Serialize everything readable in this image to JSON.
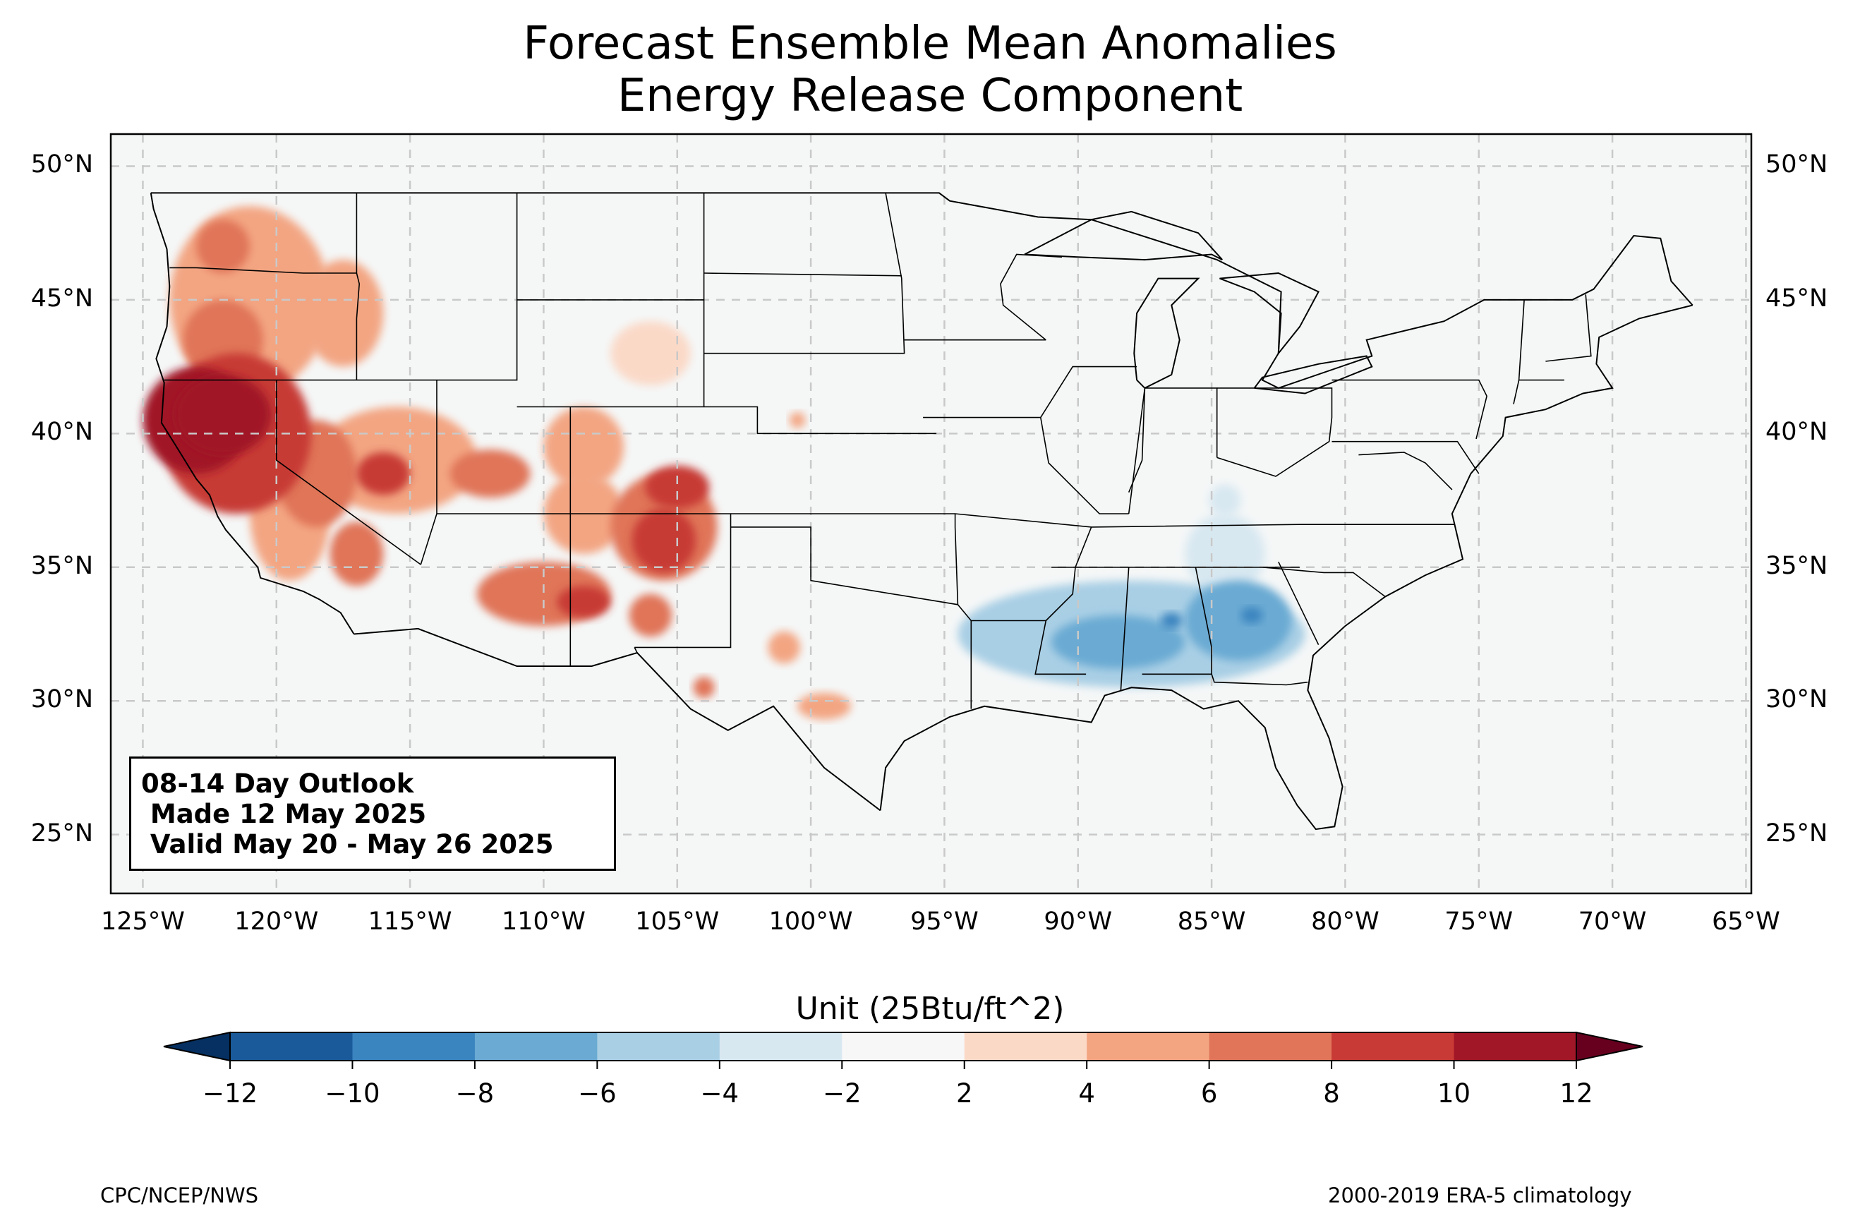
{
  "title": {
    "line1": "Forecast Ensemble Mean Anomalies",
    "line2": "Energy Release Component"
  },
  "map": {
    "lon_min": -126.2,
    "lon_max": -64.8,
    "lat_min": 22.8,
    "lat_max": 51.2,
    "background_color": "#f5f7f7",
    "gridline_color": "#c9c9c9",
    "lat_ticks": [
      {
        "value": 50,
        "label": "50°N"
      },
      {
        "value": 45,
        "label": "45°N"
      },
      {
        "value": 40,
        "label": "40°N"
      },
      {
        "value": 35,
        "label": "35°N"
      },
      {
        "value": 30,
        "label": "30°N"
      },
      {
        "value": 25,
        "label": "25°N"
      }
    ],
    "lon_ticks": [
      {
        "value": -125,
        "label": "125°W"
      },
      {
        "value": -120,
        "label": "120°W"
      },
      {
        "value": -115,
        "label": "115°W"
      },
      {
        "value": -110,
        "label": "110°W"
      },
      {
        "value": -105,
        "label": "105°W"
      },
      {
        "value": -100,
        "label": "100°W"
      },
      {
        "value": -95,
        "label": "95°W"
      },
      {
        "value": -90,
        "label": "90°W"
      },
      {
        "value": -85,
        "label": "85°W"
      },
      {
        "value": -80,
        "label": "80°W"
      },
      {
        "value": -75,
        "label": "75°W"
      },
      {
        "value": -70,
        "label": "70°W"
      },
      {
        "value": -65,
        "label": "65°W"
      }
    ]
  },
  "outlook": {
    "line1": "08-14 Day Outlook",
    "line2": " Made 12 May 2025",
    "line3": " Valid May 20 - May 26 2025"
  },
  "anomalies": [
    {
      "name": "northern-california-core",
      "lon": -122.0,
      "lat": 40.7,
      "value": 12,
      "rx": 1.8,
      "ry": 1.5
    },
    {
      "name": "northern-california-west",
      "lon": -123.0,
      "lat": 40.5,
      "value": 10,
      "rx": 2.0,
      "ry": 2.0
    },
    {
      "name": "northern-california-broad",
      "lon": -121.5,
      "lat": 40.0,
      "value": 8,
      "rx": 2.8,
      "ry": 3.0
    },
    {
      "name": "oregon-washington-band",
      "lon": -121.0,
      "lat": 45.0,
      "value": 4,
      "rx": 3.0,
      "ry": 3.5
    },
    {
      "name": "oregon-core",
      "lon": -122.0,
      "lat": 43.5,
      "value": 6,
      "rx": 1.5,
      "ry": 1.5
    },
    {
      "name": "washington-patch",
      "lon": -122.0,
      "lat": 47.0,
      "value": 6,
      "rx": 1.0,
      "ry": 1.0
    },
    {
      "name": "idaho-patch",
      "lon": -117.5,
      "lat": 44.5,
      "value": 4,
      "rx": 1.5,
      "ry": 2.0
    },
    {
      "name": "nevada-west",
      "lon": -118.5,
      "lat": 38.5,
      "value": 6,
      "rx": 1.5,
      "ry": 2.0
    },
    {
      "name": "central-nevada",
      "lon": -116.0,
      "lat": 38.5,
      "value": 8,
      "rx": 1.0,
      "ry": 0.8
    },
    {
      "name": "great-basin-band",
      "lon": -115.5,
      "lat": 39.0,
      "value": 4,
      "rx": 3.0,
      "ry": 2.0
    },
    {
      "name": "utah-patch",
      "lon": -112.0,
      "lat": 38.5,
      "value": 6,
      "rx": 1.5,
      "ry": 0.9
    },
    {
      "name": "southern-california",
      "lon": -117.0,
      "lat": 35.5,
      "value": 6,
      "rx": 1.0,
      "ry": 1.2
    },
    {
      "name": "sierra-band",
      "lon": -119.5,
      "lat": 37.0,
      "value": 4,
      "rx": 1.5,
      "ry": 2.5
    },
    {
      "name": "colorado-west",
      "lon": -108.5,
      "lat": 39.5,
      "value": 4,
      "rx": 1.5,
      "ry": 1.5
    },
    {
      "name": "colorado-south",
      "lon": -105.0,
      "lat": 38.0,
      "value": 8,
      "rx": 1.2,
      "ry": 0.8
    },
    {
      "name": "new-mexico-north",
      "lon": -105.5,
      "lat": 36.0,
      "value": 8,
      "rx": 1.2,
      "ry": 1.2
    },
    {
      "name": "new-mexico-band",
      "lon": -105.5,
      "lat": 36.5,
      "value": 6,
      "rx": 2.0,
      "ry": 2.0
    },
    {
      "name": "arizona-central",
      "lon": -110.0,
      "lat": 34.0,
      "value": 6,
      "rx": 2.5,
      "ry": 1.2
    },
    {
      "name": "arizona-east",
      "lon": -108.5,
      "lat": 33.7,
      "value": 8,
      "rx": 1.0,
      "ry": 0.6
    },
    {
      "name": "new-mexico-south",
      "lon": -106.0,
      "lat": 33.2,
      "value": 6,
      "rx": 0.8,
      "ry": 0.8
    },
    {
      "name": "four-corners",
      "lon": -108.5,
      "lat": 37.0,
      "value": 4,
      "rx": 1.5,
      "ry": 1.5
    },
    {
      "name": "wyoming-patch",
      "lon": -106.0,
      "lat": 43.0,
      "value": 2,
      "rx": 1.5,
      "ry": 1.2
    },
    {
      "name": "nebraska-dot",
      "lon": -100.5,
      "lat": 40.5,
      "value": 4,
      "rx": 0.3,
      "ry": 0.3
    },
    {
      "name": "west-texas",
      "lon": -101.0,
      "lat": 32.0,
      "value": 4,
      "rx": 0.6,
      "ry": 0.6
    },
    {
      "name": "south-texas",
      "lon": -99.5,
      "lat": 29.8,
      "value": 4,
      "rx": 1.0,
      "ry": 0.5
    },
    {
      "name": "big-bend",
      "lon": -104.0,
      "lat": 30.5,
      "value": 6,
      "rx": 0.4,
      "ry": 0.4
    },
    {
      "name": "gulf-coast-band",
      "lon": -88.0,
      "lat": 32.5,
      "value": -4,
      "rx": 6.5,
      "ry": 2.0
    },
    {
      "name": "alabama-georgia",
      "lon": -84.0,
      "lat": 33.0,
      "value": -6,
      "rx": 2.0,
      "ry": 1.5
    },
    {
      "name": "mississippi-core",
      "lon": -88.5,
      "lat": 32.2,
      "value": -6,
      "rx": 2.5,
      "ry": 1.0
    },
    {
      "name": "georgia-dot",
      "lon": -83.5,
      "lat": 33.2,
      "value": -8,
      "rx": 0.4,
      "ry": 0.3
    },
    {
      "name": "alabama-dot",
      "lon": -86.5,
      "lat": 33.0,
      "value": -8,
      "rx": 0.4,
      "ry": 0.3
    },
    {
      "name": "tennessee-patch",
      "lon": -84.5,
      "lat": 35.5,
      "value": -2,
      "rx": 1.5,
      "ry": 1.5
    },
    {
      "name": "ohio-valley-patch",
      "lon": -84.5,
      "lat": 37.5,
      "value": -2,
      "rx": 0.6,
      "ry": 0.6
    }
  ],
  "colorbar": {
    "title": "Unit (25Btu/ft^2)",
    "levels": [
      -12,
      -10,
      -8,
      -6,
      -4,
      -2,
      2,
      4,
      6,
      8,
      10,
      12
    ],
    "tick_labels": [
      "−12",
      "−10",
      "−8",
      "−6",
      "−4",
      "−2",
      "2",
      "4",
      "6",
      "8",
      "10",
      "12"
    ],
    "colors": [
      "#1a5a9a",
      "#3a84bf",
      "#6aaad3",
      "#a9cfe5",
      "#d8e8f1",
      "#f7f7f7",
      "#fbd9c7",
      "#f3a582",
      "#e07559",
      "#c73a36",
      "#a11727"
    ],
    "under_color": "#053061",
    "over_color": "#67001f"
  },
  "footer": {
    "left": "CPC/NCEP/NWS",
    "right": "2000-2019 ERA-5 climatology"
  }
}
